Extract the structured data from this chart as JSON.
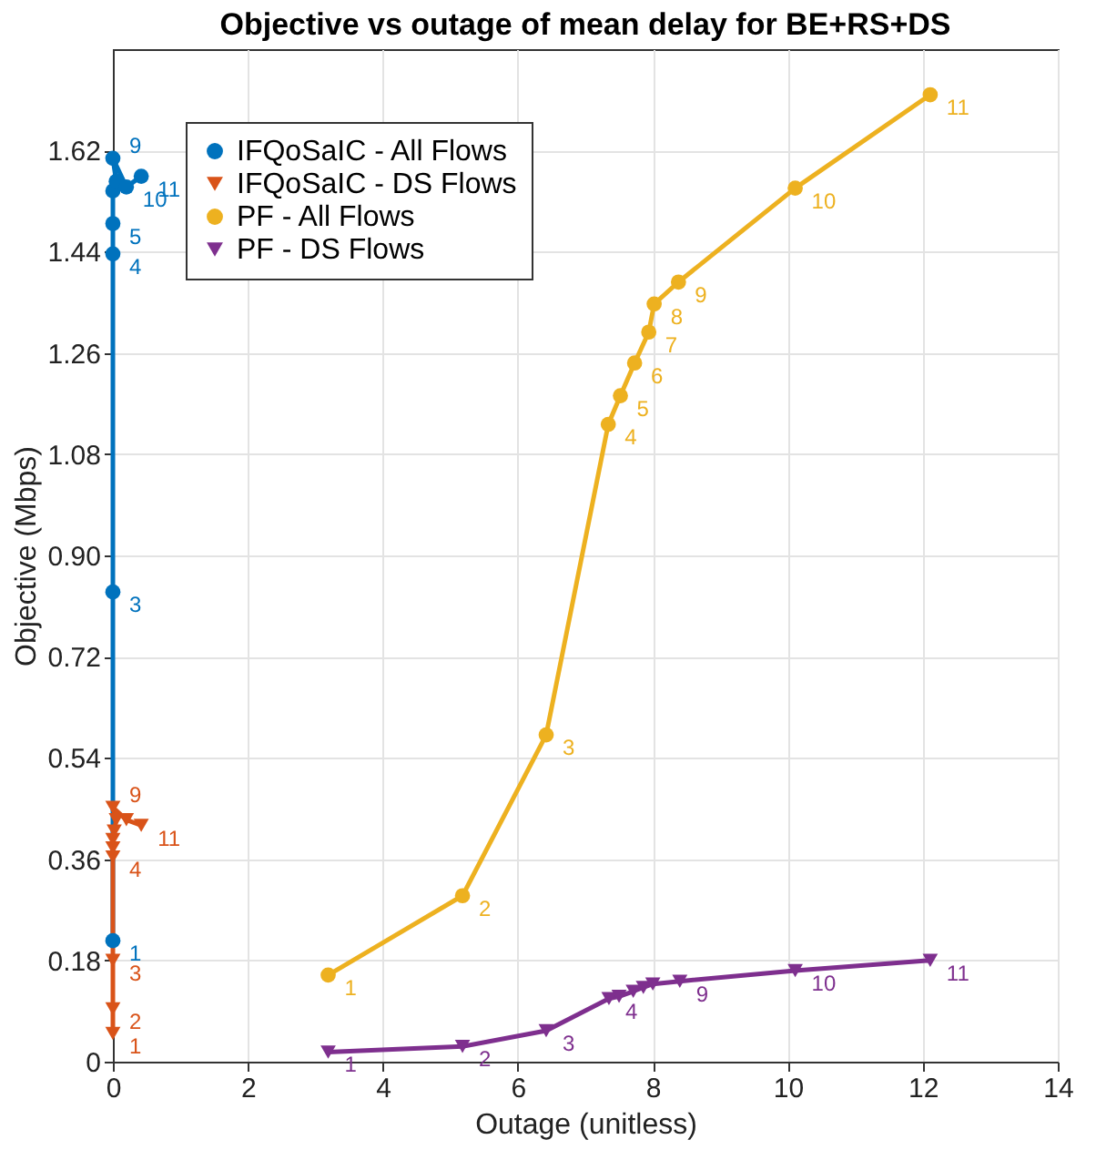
{
  "chart_data": {
    "type": "line",
    "title": "Objective vs outage of mean delay for BE+RS+DS",
    "xlabel": "Outage (unitless)",
    "ylabel": "Objective (Mbps)",
    "xlim": [
      0,
      14
    ],
    "xticks": [
      0,
      2,
      4,
      6,
      8,
      10,
      12,
      14
    ],
    "ylim": [
      0,
      1.8
    ],
    "yticks": [
      0,
      0.18,
      0.36,
      0.54,
      0.72,
      {
        "value": 0.9,
        "label": "0.90"
      },
      1.08,
      1.26,
      1.44,
      1.62
    ],
    "grid": true,
    "legend": "top left",
    "series": [
      {
        "name": "IFQoSaIC - All Flows",
        "color": "#0072bd",
        "marker": "circle",
        "x": [
          0,
          null,
          0,
          0,
          0,
          0,
          null,
          0.05,
          0,
          0.2,
          0.42
        ],
        "values": [
          0.215,
          null,
          0.835,
          1.436,
          1.49,
          1.548,
          null,
          1.565,
          1.606,
          1.555,
          1.574
        ]
      },
      {
        "name": "IFQoSaIC - DS Flows",
        "color": "#d95319",
        "marker": "triangle",
        "x": [
          0,
          0,
          0,
          0,
          0,
          0,
          0.02,
          0.05,
          0,
          0.2,
          0.42
        ],
        "values": [
          0.05,
          0.094,
          0.18,
          0.364,
          0.38,
          0.395,
          0.41,
          0.43,
          0.452,
          0.43,
          0.42
        ]
      },
      {
        "name": "PF - All Flows",
        "color": "#edb120",
        "marker": "circle",
        "x": [
          3.19,
          5.18,
          6.42,
          7.34,
          7.52,
          7.73,
          7.94,
          8.02,
          8.38,
          10.11,
          12.11
        ],
        "values": [
          0.154,
          0.295,
          0.581,
          1.133,
          1.184,
          1.242,
          1.297,
          1.347,
          1.386,
          1.553,
          1.719
        ]
      },
      {
        "name": "PF - DS Flows",
        "color": "#7e2f8e",
        "marker": "triangle",
        "x": [
          3.19,
          5.18,
          6.42,
          7.35,
          7.5,
          7.71,
          7.86,
          8.0,
          8.4,
          10.11,
          12.11
        ],
        "values": [
          0.017,
          0.027,
          0.055,
          0.112,
          0.116,
          0.125,
          0.132,
          0.138,
          0.143,
          0.162,
          0.18
        ]
      }
    ],
    "annotations": [
      {
        "text": "1",
        "x": 0,
        "y": 0.215
      },
      {
        "text": "3",
        "x": 0,
        "y": 0.835
      },
      {
        "text": "4",
        "x": 0,
        "y": 1.436
      },
      {
        "text": "5",
        "x": 0,
        "y": 1.49
      },
      {
        "text": "9",
        "x": 0,
        "y": 1.606
      },
      {
        "text": "10",
        "x": 0.2,
        "y": 1.555
      },
      {
        "text": "11",
        "x": 0.42,
        "y": 1.574
      },
      {
        "text": "1",
        "x": 0,
        "y": 0.05
      },
      {
        "text": "2",
        "x": 0,
        "y": 0.094
      },
      {
        "text": "3",
        "x": 0,
        "y": 0.18
      },
      {
        "text": "4",
        "x": 0,
        "y": 0.364
      },
      {
        "text": "9",
        "x": 0,
        "y": 0.452
      },
      {
        "text": "11",
        "x": 0.42,
        "y": 0.42
      },
      {
        "text": "1",
        "x": 3.19,
        "y": 0.154
      },
      {
        "text": "2",
        "x": 5.18,
        "y": 0.295
      },
      {
        "text": "3",
        "x": 6.42,
        "y": 0.581
      },
      {
        "text": "4",
        "x": 7.34,
        "y": 1.133
      },
      {
        "text": "5",
        "x": 7.52,
        "y": 1.184
      },
      {
        "text": "6",
        "x": 7.73,
        "y": 1.242
      },
      {
        "text": "7",
        "x": 7.94,
        "y": 1.297
      },
      {
        "text": "8",
        "x": 8.02,
        "y": 1.347
      },
      {
        "text": "9",
        "x": 8.38,
        "y": 1.386
      },
      {
        "text": "10",
        "x": 10.11,
        "y": 1.553
      },
      {
        "text": "11",
        "x": 12.11,
        "y": 1.719
      },
      {
        "text": "1",
        "x": 3.19,
        "y": 0.017
      },
      {
        "text": "2",
        "x": 5.18,
        "y": 0.027
      },
      {
        "text": "3",
        "x": 6.42,
        "y": 0.055
      },
      {
        "text": "4",
        "x": 7.35,
        "y": 0.112
      },
      {
        "text": "9",
        "x": 8.4,
        "y": 0.143
      },
      {
        "text": "10",
        "x": 10.11,
        "y": 0.162
      },
      {
        "text": "11",
        "x": 12.11,
        "y": 0.18
      }
    ]
  }
}
